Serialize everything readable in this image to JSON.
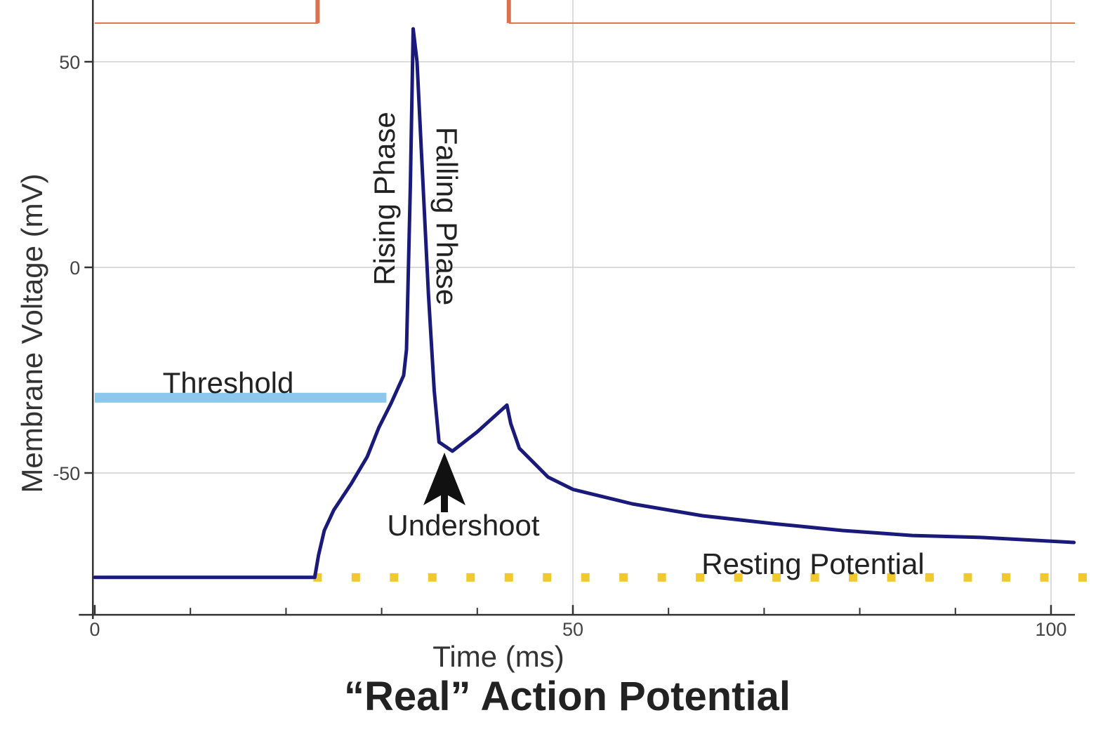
{
  "chart_data": {
    "type": "line",
    "title": "“Real” Action Potential",
    "xlabel": "Time (ms)",
    "ylabel": "Membrane Voltage (mV)",
    "xlim": [
      0,
      102.5
    ],
    "ylim": [
      -84.5,
      65
    ],
    "grid": true,
    "x_ticks": [
      0,
      50,
      100
    ],
    "x_tick_labels": [
      "0",
      "50",
      "100"
    ],
    "x_minor_ticks": [
      10,
      20,
      30,
      40,
      60,
      70,
      80,
      90
    ],
    "y_ticks": [
      50,
      0,
      -50
    ],
    "y_tick_labels": [
      "50",
      "0",
      "-50"
    ],
    "series": [
      {
        "name": "Membrane voltage",
        "color": "#1a1a7a",
        "x": [
          0,
          23.0,
          23.4,
          24,
          25,
          26.8,
          28.5,
          29.7,
          31,
          32.3,
          32.6,
          33.0,
          33.3,
          33.7,
          34.1,
          34.9,
          35.5,
          36.0,
          37.4,
          40.0,
          43.1,
          43.5,
          44.4,
          47.4,
          50,
          56.2,
          63.5,
          70.9,
          78.2,
          85.5,
          92.9,
          102.4
        ],
        "y": [
          -75.4,
          -75.4,
          -70,
          -64,
          -59,
          -52.7,
          -46,
          -39,
          -33,
          -26.3,
          -20,
          20,
          58,
          50,
          31,
          -6.7,
          -30,
          -42.5,
          -44.7,
          -40,
          -33.5,
          -38,
          -44,
          -51,
          -54,
          -57.5,
          -60.4,
          -62.3,
          -64,
          -65.2,
          -65.7,
          -66.9
        ]
      }
    ],
    "threshold": {
      "label": "Threshold",
      "value": -31.7,
      "x_range": [
        0,
        30.5
      ],
      "color": "#8cc8ec"
    },
    "resting": {
      "label": "Resting Potential",
      "value": -75.4,
      "x_range": [
        23.3,
        104
      ],
      "color": "#f0c830"
    },
    "stimulus": {
      "color": "#d9734f",
      "baseline": 59.4,
      "on_ms": 23.3,
      "off_ms": 43.3
    },
    "annotations": {
      "rising": "Rising Phase",
      "falling": "Falling Phase",
      "undershoot": "Undershoot"
    }
  }
}
